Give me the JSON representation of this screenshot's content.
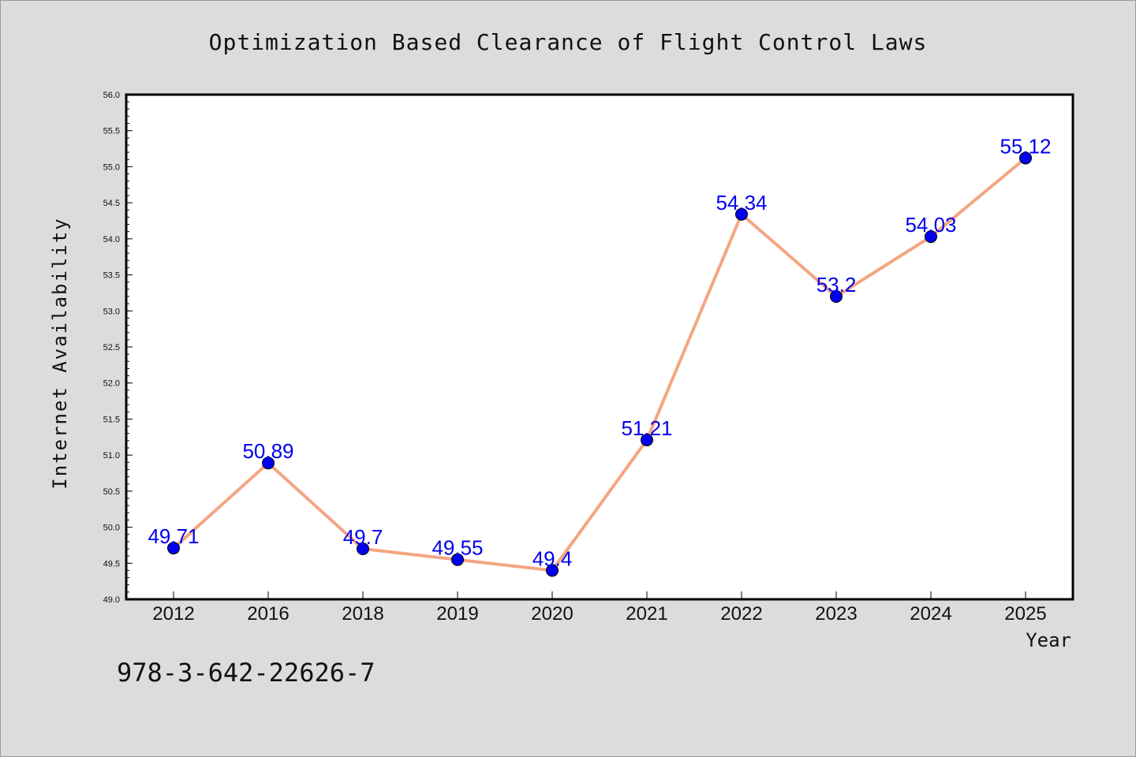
{
  "chart_data": {
    "type": "line",
    "title": "Optimization Based Clearance of Flight Control Laws",
    "xlabel": "Year",
    "ylabel": "Internet Availability",
    "categories": [
      "2012",
      "2016",
      "2018",
      "2019",
      "2020",
      "2021",
      "2022",
      "2023",
      "2024",
      "2025"
    ],
    "series": [
      {
        "values": [
          49.71,
          50.89,
          49.7,
          49.55,
          49.4,
          51.21,
          54.34,
          53.2,
          54.03,
          55.12
        ],
        "data_labels": [
          "49.71",
          "50.89",
          "49.7",
          "49.55",
          "49.4",
          "51.21",
          "54.34",
          "53.2",
          "54.03",
          "55.12"
        ]
      }
    ],
    "ylim": [
      49.0,
      56.0
    ],
    "yticks": [
      "49.0",
      "49.5",
      "50.0",
      "50.5",
      "51.0",
      "51.5",
      "52.0",
      "52.5",
      "53.0",
      "53.5",
      "54.0",
      "54.5",
      "55.0",
      "55.5",
      "56.0"
    ],
    "grid": false,
    "line_color": "#f4a582",
    "marker_color": "#0000ee",
    "label_color": "#0000ee"
  },
  "footer": {
    "isbn": "978-3-642-22626-7"
  }
}
